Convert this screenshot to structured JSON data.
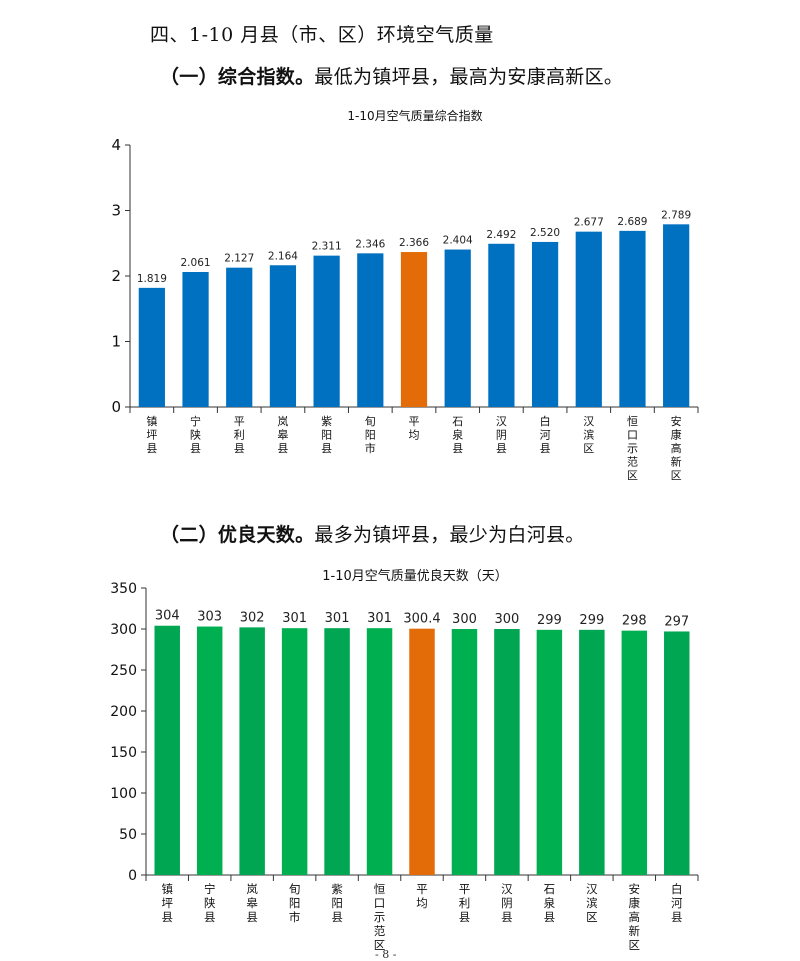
{
  "section_heading": "四、1-10 月县（市、区）环境空气质量",
  "para1": {
    "lead": "（一）综合指数。",
    "text": "最低为镇坪县，最高为安康高新区。"
  },
  "para2": {
    "lead": "（二）优良天数。",
    "text": "最多为镇坪县，最少为白河县。"
  },
  "footer": "- 8 -",
  "chart_data": [
    {
      "type": "bar",
      "title": "1-10月空气质量综合指数",
      "categories": [
        "镇坪县",
        "宁陕县",
        "平利县",
        "岚皋县",
        "紫阳县",
        "旬阳市",
        "平均",
        "石泉县",
        "汉阴县",
        "白河县",
        "汉滨区",
        "恒口示范区",
        "安康高新区"
      ],
      "values": [
        1.819,
        2.061,
        2.127,
        2.164,
        2.311,
        2.346,
        2.366,
        2.404,
        2.492,
        2.52,
        2.677,
        2.689,
        2.789
      ],
      "value_labels": [
        "1.819",
        "2.061",
        "2.127",
        "2.164",
        "2.311",
        "2.346",
        "2.366",
        "2.404",
        "2.492",
        "2.520",
        "2.677",
        "2.689",
        "2.789"
      ],
      "highlight_category": "平均",
      "ylim": [
        0,
        4
      ],
      "yticks": [
        0,
        1,
        2,
        3,
        4
      ],
      "grid": false,
      "colors": {
        "bar": "#0070c0",
        "highlight": "#e36c09"
      }
    },
    {
      "type": "bar",
      "title": "1-10月空气质量优良天数（天）",
      "categories": [
        "镇坪县",
        "宁陕县",
        "岚皋县",
        "旬阳市",
        "紫阳县",
        "恒口示范区",
        "平均",
        "平利县",
        "汉阴县",
        "石泉县",
        "汉滨区",
        "安康高新区",
        "白河县"
      ],
      "values": [
        304,
        303,
        302,
        301,
        301,
        301,
        300.4,
        300,
        300,
        299,
        299,
        298,
        297
      ],
      "value_labels": [
        "304",
        "303",
        "302",
        "301",
        "301",
        "301",
        "300.4",
        "300",
        "300",
        "299",
        "299",
        "298",
        "297"
      ],
      "highlight_category": "平均",
      "ylim": [
        0,
        350
      ],
      "yticks": [
        0,
        50,
        100,
        150,
        200,
        250,
        300,
        350
      ],
      "grid": false,
      "colors": {
        "bar": "#00a651",
        "bar_alt": "#00b050",
        "highlight": "#e36c09"
      }
    }
  ]
}
